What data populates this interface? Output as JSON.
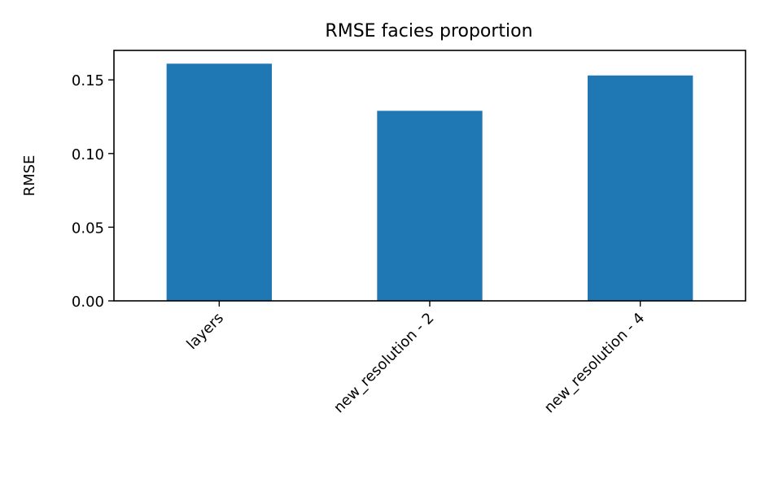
{
  "chart_data": {
    "type": "bar",
    "title": "RMSE facies proportion",
    "xlabel": "",
    "ylabel": "RMSE",
    "categories": [
      "layers",
      "new_resolution - 2",
      "new_resolution - 4"
    ],
    "values": [
      0.161,
      0.129,
      0.153
    ],
    "ylim": [
      0,
      0.17
    ],
    "yticks": [
      0.0,
      0.05,
      0.1,
      0.15
    ],
    "ytick_labels": [
      "0.00",
      "0.05",
      "0.10",
      "0.15"
    ],
    "grid": false,
    "legend": "none",
    "bar_color": "#1f77b4",
    "xtick_rotation": 45
  }
}
